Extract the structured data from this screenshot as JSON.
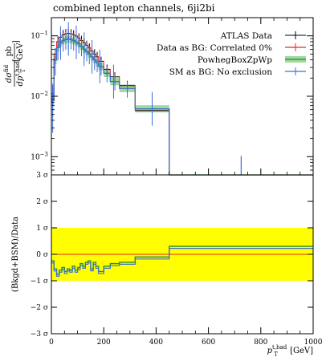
{
  "title": "combined lepton channels, 6ji2bi",
  "colors": {
    "data": "#000000",
    "correlated": "#e8281e",
    "powheg_band": "#9fd99f",
    "powheg_line": "#2e8b2e",
    "sm": "#3b6fd9",
    "yellow_band": "#ffff00",
    "zero_line": "#e8281e"
  },
  "chart_data": [
    {
      "panel": "upper",
      "type": "line",
      "yscale": "log",
      "xlim": [
        0,
        1000
      ],
      "ylim": [
        0.0005,
        0.2
      ],
      "ylabel_main": "dσ",
      "ylabel_main_sup": "fid",
      "ylabel_den": "dp",
      "ylabel_den_sup": "t,had",
      "ylabel_den_sub": "T",
      "ylabel_unit_num": "pb",
      "ylabel_unit_den": "GeV",
      "yticks": [
        {
          "value": 0.1,
          "base": "10",
          "exp": "−1"
        },
        {
          "value": 0.01,
          "base": "10",
          "exp": "−2"
        },
        {
          "value": 0.001,
          "base": "10",
          "exp": "−3"
        }
      ],
      "bottom_tick": "3 σ",
      "bin_edges": [
        0,
        10,
        20,
        30,
        40,
        50,
        60,
        70,
        80,
        90,
        100,
        110,
        120,
        130,
        140,
        150,
        160,
        170,
        180,
        200,
        225,
        260,
        320,
        450,
        1000
      ],
      "legend_position": "top-right",
      "series": [
        {
          "name": "ATLAS Data",
          "style": "errorbar",
          "color": "#000000",
          "values": [
            0.011,
            0.05,
            0.08,
            0.095,
            0.104,
            0.108,
            0.11,
            0.108,
            0.104,
            0.099,
            0.092,
            0.084,
            0.077,
            0.07,
            0.063,
            0.056,
            0.05,
            0.045,
            0.038,
            0.028,
            0.021,
            0.015,
            0.0058,
            0.00035
          ],
          "errors": [
            0.004,
            0.012,
            0.018,
            0.02,
            0.021,
            0.022,
            0.022,
            0.021,
            0.02,
            0.019,
            0.018,
            0.016,
            0.015,
            0.013,
            0.012,
            0.011,
            0.01,
            0.009,
            0.007,
            0.0055,
            0.004,
            0.003,
            0.0011,
            8e-05
          ]
        },
        {
          "name": "Data as BG: Correlated 0%",
          "style": "errorbar",
          "color": "#e8281e",
          "values": [
            0.011,
            0.05,
            0.08,
            0.095,
            0.104,
            0.108,
            0.11,
            0.108,
            0.104,
            0.099,
            0.092,
            0.084,
            0.077,
            0.07,
            0.063,
            0.056,
            0.05,
            0.045,
            0.038,
            0.028,
            0.021,
            0.015,
            0.0058,
            0.00035
          ],
          "errors": [
            0.004,
            0.012,
            0.018,
            0.02,
            0.021,
            0.022,
            0.022,
            0.021,
            0.02,
            0.019,
            0.018,
            0.016,
            0.015,
            0.013,
            0.012,
            0.011,
            0.01,
            0.009,
            0.007,
            0.0055,
            0.004,
            0.003,
            0.0011,
            8e-05
          ]
        },
        {
          "name": "PowhegBoxZpWp",
          "style": "band",
          "color": "#2e8b2e",
          "values": [
            0.0085,
            0.04,
            0.064,
            0.076,
            0.083,
            0.087,
            0.089,
            0.087,
            0.083,
            0.078,
            0.074,
            0.067,
            0.06,
            0.055,
            0.05,
            0.045,
            0.04,
            0.036,
            0.031,
            0.024,
            0.0175,
            0.0135,
            0.0062,
            0.00037
          ],
          "band_low": [
            0.0072,
            0.034,
            0.055,
            0.066,
            0.072,
            0.075,
            0.077,
            0.075,
            0.072,
            0.068,
            0.064,
            0.058,
            0.052,
            0.048,
            0.043,
            0.039,
            0.035,
            0.031,
            0.027,
            0.0208,
            0.0152,
            0.0117,
            0.0054,
            0.00031
          ],
          "band_high": [
            0.0098,
            0.046,
            0.073,
            0.087,
            0.095,
            0.1,
            0.102,
            0.1,
            0.095,
            0.089,
            0.085,
            0.077,
            0.069,
            0.063,
            0.058,
            0.052,
            0.046,
            0.041,
            0.036,
            0.0277,
            0.0202,
            0.0156,
            0.0071,
            0.00044
          ]
        },
        {
          "name": "SM as BG: No exclusion",
          "style": "errorbar",
          "color": "#3b6fd9",
          "values": [
            0.0085,
            0.04,
            0.064,
            0.076,
            0.083,
            0.087,
            0.089,
            0.087,
            0.083,
            0.078,
            0.074,
            0.067,
            0.06,
            0.055,
            0.05,
            0.045,
            0.04,
            0.036,
            0.031,
            0.024,
            0.0175,
            0.0135,
            0.0062,
            0.00037
          ],
          "errors": [
            0.006,
            0.018,
            0.025,
            0.027,
            0.028,
            0.028,
            0.028,
            0.027,
            0.026,
            0.024,
            0.023,
            0.021,
            0.019,
            0.017,
            0.016,
            0.014,
            0.013,
            0.011,
            0.009,
            0.007,
            0.005,
            0.004,
            0.0025,
            0.0006
          ],
          "marker_x": [
            5,
            35,
            65,
            95,
            125,
            155,
            185,
            237.5,
            385,
            725
          ]
        }
      ]
    },
    {
      "panel": "lower",
      "type": "line",
      "xlim": [
        0,
        1000
      ],
      "ylim": [
        -3,
        3
      ],
      "xlabel": "p",
      "xlabel_sub": "T",
      "xlabel_sup": "t,had",
      "xlabel_unit": "[GeV]",
      "ylabel": "(Bkgd+BSM)/Data",
      "xticks": [
        0,
        200,
        400,
        600,
        800,
        1000
      ],
      "yticks": [
        {
          "value": 3,
          "label": "3 σ"
        },
        {
          "value": 2,
          "label": "2 σ"
        },
        {
          "value": 1,
          "label": "1 σ"
        },
        {
          "value": 0,
          "label": "0 σ"
        },
        {
          "value": -1,
          "label": "−1 σ"
        },
        {
          "value": -2,
          "label": "−2 σ"
        },
        {
          "value": -3,
          "label": "−3 σ"
        }
      ],
      "yellow_band": [
        -1,
        1
      ],
      "significance": [
        -0.25,
        -0.55,
        -0.75,
        -0.6,
        -0.5,
        -0.65,
        -0.55,
        -0.6,
        -0.45,
        -0.6,
        -0.5,
        -0.35,
        -0.45,
        -0.3,
        -0.25,
        -0.55,
        -0.3,
        -0.45,
        -0.65,
        -0.45,
        -0.35,
        -0.3,
        -0.1,
        0.3
      ]
    }
  ]
}
